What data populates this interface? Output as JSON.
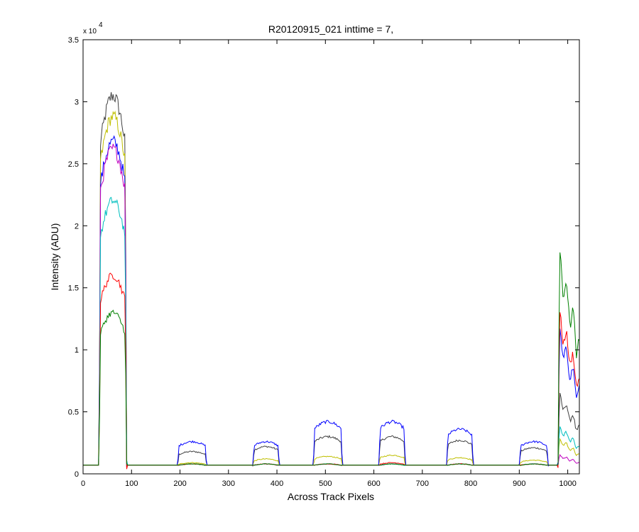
{
  "chart_data": {
    "type": "line",
    "title": "R20120915_021 inttime = 7,",
    "xlabel": "Across Track Pixels",
    "ylabel": "Intensity (ADU)",
    "y_multiplier": "x 10",
    "y_multiplier_exponent": "4",
    "xlim": [
      0,
      1024
    ],
    "ylim": [
      0,
      3.5
    ],
    "x_ticks": [
      0,
      100,
      200,
      300,
      400,
      500,
      600,
      700,
      800,
      900,
      1000
    ],
    "x_tick_labels": [
      "0",
      "100",
      "200",
      "300",
      "400",
      "500",
      "600",
      "700",
      "800",
      "900",
      "1000"
    ],
    "y_ticks": [
      0,
      0.5,
      1,
      1.5,
      2,
      2.5,
      3,
      3.5
    ],
    "y_tick_labels": [
      "0",
      "0.5",
      "1",
      "1.5",
      "2",
      "2.5",
      "3",
      "3.5"
    ],
    "grid": false,
    "baseline": 0.07,
    "segment_x_ranges": [
      [
        33,
        90
      ],
      [
        195,
        255
      ],
      [
        350,
        405
      ],
      [
        475,
        535
      ],
      [
        610,
        665
      ],
      [
        750,
        805
      ],
      [
        900,
        960
      ],
      [
        980,
        1024
      ]
    ],
    "series": [
      {
        "color": "#404040",
        "levels": [
          3.05,
          0.18,
          0.22,
          0.3,
          0.3,
          0.27,
          0.21,
          0.5
        ]
      },
      {
        "color": "#bfbf00",
        "levels": [
          2.88,
          0.09,
          0.12,
          0.14,
          0.15,
          0.13,
          0.11,
          0.22
        ]
      },
      {
        "color": "#0000ff",
        "levels": [
          2.68,
          0.26,
          0.26,
          0.42,
          0.42,
          0.36,
          0.26,
          0.9
        ]
      },
      {
        "color": "#bf00bf",
        "levels": [
          2.62,
          0.08,
          0.08,
          0.08,
          0.08,
          0.08,
          0.08,
          0.12
        ]
      },
      {
        "color": "#00bfbf",
        "levels": [
          2.2,
          0.08,
          0.08,
          0.08,
          0.08,
          0.08,
          0.08,
          0.3
        ]
      },
      {
        "color": "#ff0000",
        "levels": [
          1.6,
          0.08,
          0.08,
          0.08,
          0.09,
          0.08,
          0.08,
          1.02
        ]
      },
      {
        "color": "#008000",
        "levels": [
          1.3,
          0.08,
          0.08,
          0.08,
          0.08,
          0.08,
          0.08,
          1.4
        ]
      }
    ]
  }
}
